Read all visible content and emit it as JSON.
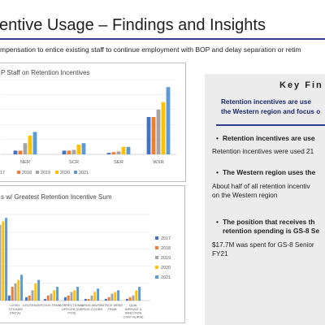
{
  "header": {
    "title": "entive Usage – Findings and Insights",
    "subtitle": "mpensation to entice existing staff to continue employment with BOP and delay separation or retim"
  },
  "chart_data": [
    {
      "type": "bar",
      "title": "P Staff on Retention Incentives",
      "categories": [
        "",
        "NER",
        "SCR",
        "SER",
        "WXR"
      ],
      "series": [
        {
          "name": "2017",
          "values": [
            null,
            5,
            5,
            2,
            50
          ]
        },
        {
          "name": "2018",
          "values": [
            null,
            5,
            5,
            3,
            50
          ]
        },
        {
          "name": "2019",
          "values": [
            null,
            15,
            6,
            4,
            60
          ]
        },
        {
          "name": "2020",
          "values": [
            null,
            25,
            13,
            10,
            70
          ]
        },
        {
          "name": "2021",
          "values": [
            null,
            30,
            15,
            10,
            90
          ]
        }
      ],
      "legend": [
        "017",
        "2018",
        "2019",
        "2020",
        "2021"
      ],
      "legend_position": "bottom",
      "grid": true
    },
    {
      "type": "bar",
      "title": "s w/ Greatest Retention Incentive Sum",
      "categories": [
        "",
        "LEVEL TITIONER DNICAL",
        "LIEUTENANT",
        "COOK FRMN",
        "CORRECTIONAL OFFICER (GS 7TO9)",
        "DRUG ABUSE PROG COORD",
        "MTNCE WRKR FRMN",
        "QUAL IMPRVMT & INFECTION CONT NURSE"
      ],
      "series": [
        {
          "name": "2017",
          "values": [
            42,
            3,
            2,
            1,
            2,
            1,
            1,
            1
          ]
        },
        {
          "name": "2018",
          "values": [
            40,
            8,
            3,
            3,
            3,
            1,
            2,
            2
          ]
        },
        {
          "name": "2019",
          "values": [
            44,
            10,
            6,
            4,
            5,
            3,
            4,
            3
          ]
        },
        {
          "name": "2020",
          "values": [
            46,
            12,
            10,
            6,
            6,
            5,
            5,
            6
          ]
        },
        {
          "name": "2021",
          "values": [
            48,
            15,
            12,
            8,
            8,
            7,
            6,
            8
          ]
        }
      ],
      "legend": [
        "2017",
        "2018",
        "2019",
        "2020",
        "2021"
      ],
      "legend_position": "right",
      "grid": true
    }
  ],
  "colors": {
    "series": [
      "#4472c4",
      "#ed7d31",
      "#a5a5a5",
      "#ffc000",
      "#5b9bd5"
    ],
    "accent": "#2e3e8f"
  },
  "key_findings": {
    "title": "Key Fin",
    "lead": [
      "Retention incentives are use",
      "the Western region and focus o"
    ],
    "points": [
      {
        "heading": "Retention incentives are use",
        "text": [
          "Retention incentives were used 21"
        ]
      },
      {
        "heading": "The Western region uses the",
        "text": [
          "About half of all retention incentiv",
          "on the Western region"
        ]
      },
      {
        "heading": [
          "The position that receives th",
          "retention spending is GS-8 Se"
        ],
        "text": [
          "$17.7M was spent for GS-8 Senior",
          "FY21"
        ]
      }
    ]
  }
}
